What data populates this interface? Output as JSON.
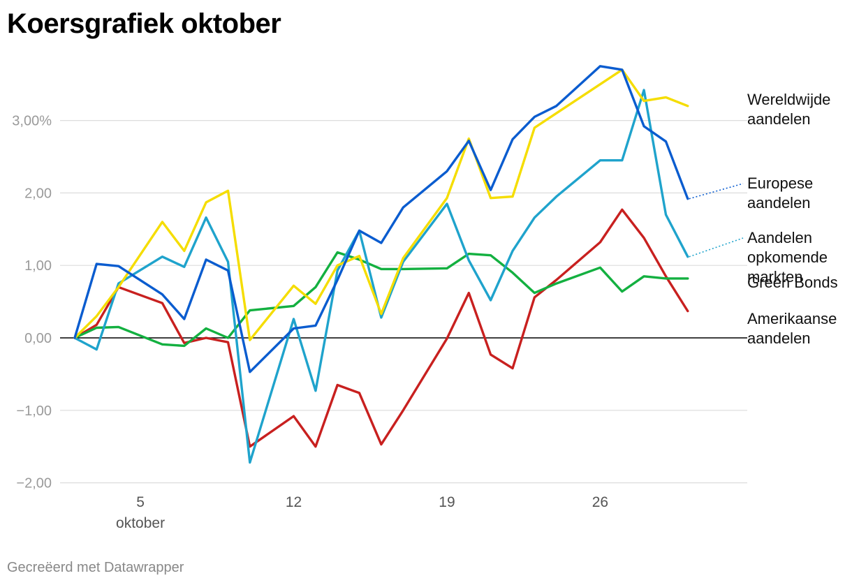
{
  "title": "Koersgrafiek oktober",
  "footer": "Gecreëerd met Datawrapper",
  "chart_data": {
    "type": "line",
    "title": "Koersgrafiek oktober",
    "xlabel": "",
    "ylabel": "",
    "ylim": [
      -2.0,
      3.8
    ],
    "xlim": [
      2,
      30
    ],
    "grid": true,
    "legend": "direct labels right",
    "y_ticks": [
      {
        "value": 3,
        "label": "3,00%"
      },
      {
        "value": 2,
        "label": "2,00"
      },
      {
        "value": 1,
        "label": "1,00"
      },
      {
        "value": 0,
        "label": "0,00"
      },
      {
        "value": -1,
        "label": "−1,00"
      },
      {
        "value": -2,
        "label": "−2,00"
      }
    ],
    "x_ticks": [
      {
        "value": 5,
        "label": "5",
        "sublabel": "oktober"
      },
      {
        "value": 12,
        "label": "12"
      },
      {
        "value": 19,
        "label": "19"
      },
      {
        "value": 26,
        "label": "26"
      }
    ],
    "x": [
      2,
      3,
      4,
      6,
      7,
      8,
      9,
      10,
      12,
      13,
      14,
      15,
      16,
      17,
      19,
      20,
      21,
      22,
      23,
      24,
      26,
      27,
      28,
      29,
      30
    ],
    "series": [
      {
        "name": "Wereldwijde aandelen",
        "color": "#f5dd00",
        "values": [
          0,
          0.3,
          0.7,
          1.6,
          1.2,
          1.87,
          2.03,
          -0.03,
          0.72,
          0.47,
          1.0,
          1.13,
          0.33,
          1.1,
          1.93,
          2.75,
          1.93,
          1.95,
          2.9,
          3.1,
          3.5,
          3.7,
          3.27,
          3.32,
          3.2
        ]
      },
      {
        "name": "Europese aandelen",
        "color": "#0a5ccf",
        "values": [
          0,
          1.02,
          0.99,
          0.6,
          0.26,
          1.08,
          0.93,
          -0.47,
          0.13,
          0.17,
          0.8,
          1.48,
          1.31,
          1.8,
          2.3,
          2.72,
          2.04,
          2.74,
          3.05,
          3.2,
          3.75,
          3.7,
          2.92,
          2.71,
          1.92
        ]
      },
      {
        "name": "Aandelen opkomende markten",
        "color": "#1fa3cc",
        "values": [
          0,
          -0.16,
          0.75,
          1.12,
          0.98,
          1.66,
          1.05,
          -1.72,
          0.26,
          -0.73,
          0.93,
          1.48,
          0.28,
          1.05,
          1.85,
          1.07,
          0.52,
          1.2,
          1.66,
          1.95,
          2.45,
          2.45,
          3.42,
          1.7,
          1.12
        ]
      },
      {
        "name": "Green Bonds",
        "color": "#13b040",
        "values": [
          0,
          0.14,
          0.15,
          -0.09,
          -0.11,
          0.13,
          0.0,
          0.38,
          0.44,
          0.7,
          1.18,
          1.08,
          0.95,
          0.95,
          0.96,
          1.16,
          1.14,
          0.9,
          0.62,
          0.75,
          0.97,
          0.64,
          0.85,
          0.82,
          0.82
        ]
      },
      {
        "name": "Amerikaanse aandelen",
        "color": "#c8201f",
        "values": [
          0,
          0.18,
          0.7,
          0.48,
          -0.07,
          0.0,
          -0.06,
          -1.5,
          -1.08,
          -1.5,
          -0.65,
          -0.76,
          -1.47,
          -1.0,
          -0.01,
          0.62,
          -0.23,
          -0.42,
          0.56,
          0.8,
          1.32,
          1.77,
          1.38,
          0.85,
          0.37
        ]
      }
    ],
    "series_labels": [
      {
        "lines": [
          "Wereldwijde",
          "aandelen"
        ]
      },
      {
        "lines": [
          "Europese",
          "aandelen"
        ]
      },
      {
        "lines": [
          "Aandelen",
          "opkomende",
          "markten"
        ]
      },
      {
        "lines": [
          "Green Bonds"
        ]
      },
      {
        "lines": [
          "Amerikaanse",
          "aandelen"
        ]
      }
    ]
  }
}
